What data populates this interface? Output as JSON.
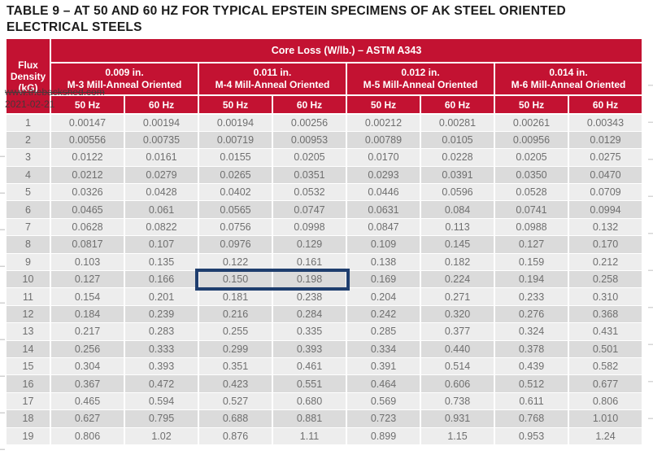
{
  "page_title": {
    "line1": "TABLE 9 – AT 50 AND 60 HZ FOR TYPICAL EPSTEIN SPECIMENS OF AK STEEL ORIENTED",
    "line2": "ELECTRICAL STEELS"
  },
  "watermark": {
    "site": "www.thebackshed.com",
    "date": "2021-02-21"
  },
  "table": {
    "corner_header": {
      "line1": "Flux",
      "line2": "Density",
      "line3": "(kG)"
    },
    "span_header": "Core Loss (W/lb.) – ASTM A343",
    "groups": [
      {
        "thickness": "0.009 in.",
        "grade": "M-3 Mill-Anneal Oriented"
      },
      {
        "thickness": "0.011 in.",
        "grade": "M-4 Mill-Anneal Oriented"
      },
      {
        "thickness": "0.012 in.",
        "grade": "M-5 Mill-Anneal Oriented"
      },
      {
        "thickness": "0.014 in.",
        "grade": "M-6 Mill-Anneal Oriented"
      }
    ],
    "freq_headers": [
      "50 Hz",
      "60 Hz",
      "50 Hz",
      "60 Hz",
      "50 Hz",
      "60 Hz",
      "50 Hz",
      "60 Hz"
    ],
    "rows": [
      {
        "flux": "1",
        "values": [
          "0.00147",
          "0.00194",
          "0.00194",
          "0.00256",
          "0.00212",
          "0.00281",
          "0.00261",
          "0.00343"
        ]
      },
      {
        "flux": "2",
        "values": [
          "0.00556",
          "0.00735",
          "0.00719",
          "0.00953",
          "0.00789",
          "0.0105",
          "0.00956",
          "0.0129"
        ]
      },
      {
        "flux": "3",
        "values": [
          "0.0122",
          "0.0161",
          "0.0155",
          "0.0205",
          "0.0170",
          "0.0228",
          "0.0205",
          "0.0275"
        ]
      },
      {
        "flux": "4",
        "values": [
          "0.0212",
          "0.0279",
          "0.0265",
          "0.0351",
          "0.0293",
          "0.0391",
          "0.0350",
          "0.0470"
        ]
      },
      {
        "flux": "5",
        "values": [
          "0.0326",
          "0.0428",
          "0.0402",
          "0.0532",
          "0.0446",
          "0.0596",
          "0.0528",
          "0.0709"
        ]
      },
      {
        "flux": "6",
        "values": [
          "0.0465",
          "0.061",
          "0.0565",
          "0.0747",
          "0.0631",
          "0.084",
          "0.0741",
          "0.0994"
        ]
      },
      {
        "flux": "7",
        "values": [
          "0.0628",
          "0.0822",
          "0.0756",
          "0.0998",
          "0.0847",
          "0.113",
          "0.0988",
          "0.132"
        ]
      },
      {
        "flux": "8",
        "values": [
          "0.0817",
          "0.107",
          "0.0976",
          "0.129",
          "0.109",
          "0.145",
          "0.127",
          "0.170"
        ]
      },
      {
        "flux": "9",
        "values": [
          "0.103",
          "0.135",
          "0.122",
          "0.161",
          "0.138",
          "0.182",
          "0.159",
          "0.212"
        ]
      },
      {
        "flux": "10",
        "values": [
          "0.127",
          "0.166",
          "0.150",
          "0.198",
          "0.169",
          "0.224",
          "0.194",
          "0.258"
        ]
      },
      {
        "flux": "11",
        "values": [
          "0.154",
          "0.201",
          "0.181",
          "0.238",
          "0.204",
          "0.271",
          "0.233",
          "0.310"
        ]
      },
      {
        "flux": "12",
        "values": [
          "0.184",
          "0.239",
          "0.216",
          "0.284",
          "0.242",
          "0.320",
          "0.276",
          "0.368"
        ]
      },
      {
        "flux": "13",
        "values": [
          "0.217",
          "0.283",
          "0.255",
          "0.335",
          "0.285",
          "0.377",
          "0.324",
          "0.431"
        ]
      },
      {
        "flux": "14",
        "values": [
          "0.256",
          "0.333",
          "0.299",
          "0.393",
          "0.334",
          "0.440",
          "0.378",
          "0.501"
        ]
      },
      {
        "flux": "15",
        "values": [
          "0.304",
          "0.393",
          "0.351",
          "0.461",
          "0.391",
          "0.514",
          "0.439",
          "0.582"
        ]
      },
      {
        "flux": "16",
        "values": [
          "0.367",
          "0.472",
          "0.423",
          "0.551",
          "0.464",
          "0.606",
          "0.512",
          "0.677"
        ]
      },
      {
        "flux": "17",
        "values": [
          "0.465",
          "0.594",
          "0.527",
          "0.680",
          "0.569",
          "0.738",
          "0.611",
          "0.806"
        ]
      },
      {
        "flux": "18",
        "values": [
          "0.627",
          "0.795",
          "0.688",
          "0.881",
          "0.723",
          "0.931",
          "0.768",
          "1.010"
        ]
      },
      {
        "flux": "19",
        "values": [
          "0.806",
          "1.02",
          "0.876",
          "1.11",
          "0.899",
          "1.15",
          "0.953",
          "1.24"
        ]
      }
    ]
  },
  "highlight": {
    "row_flux": "10",
    "col_start": 3,
    "col_end": 4,
    "highlighted_values": [
      "0.150",
      "0.198"
    ]
  },
  "colors": {
    "header_red": "#c31232",
    "row_light": "#ededed",
    "row_dark": "#dbdbdb",
    "data_text": "#6f6f6f",
    "highlight_navy": "#1f3e6e"
  }
}
